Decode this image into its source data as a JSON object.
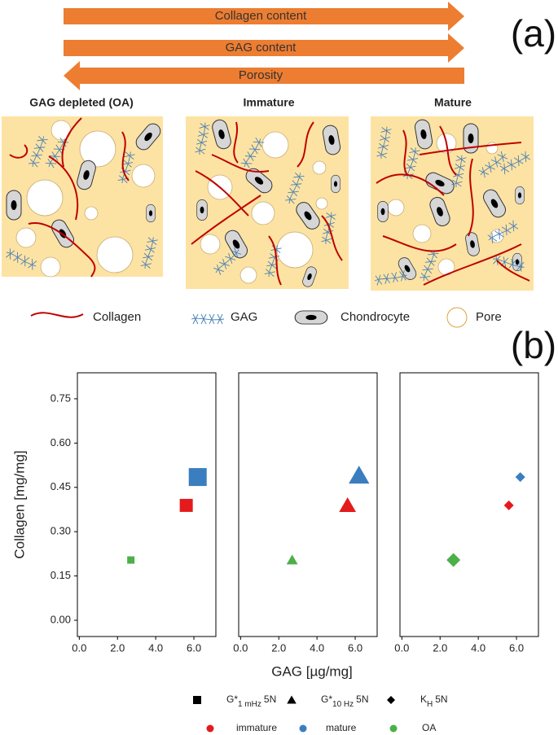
{
  "figure_a": {
    "label": "(a)",
    "arrows": [
      {
        "text": "Collagen content",
        "direction": "right"
      },
      {
        "text": "GAG content",
        "direction": "right"
      },
      {
        "text": "Porosity",
        "direction": "left"
      }
    ],
    "panels": [
      "GAG depleted (OA)",
      "Immature",
      "Mature"
    ],
    "legend": [
      "Collagen",
      "GAG",
      "Chondrocyte",
      "Pore"
    ]
  },
  "figure_b": {
    "label": "(b)",
    "x_label": "GAG [µg/mg]",
    "y_label": "Collagen [mg/mg]",
    "groups": [
      {
        "name": "immature",
        "color": "#e41a1c"
      },
      {
        "name": "mature",
        "color": "#3a7ebf"
      },
      {
        "name": "OA",
        "color": "#4daf4a"
      }
    ],
    "markers": [
      {
        "main": "G*",
        "sub": "1 mHz",
        "tail": "5N",
        "shape": "square"
      },
      {
        "main": "G*",
        "sub": "10 Hz",
        "tail": "5N",
        "shape": "triangle"
      },
      {
        "main": "K",
        "sub": "H",
        "tail": "5N",
        "shape": "diamond"
      }
    ]
  },
  "chart_data": [
    {
      "type": "scatter",
      "marker": "square",
      "x": [
        5.6,
        6.2,
        2.7
      ],
      "values": [
        0.389,
        0.485,
        0.204
      ],
      "sizes": [
        16,
        22,
        9
      ],
      "xlim": [
        -0.1,
        7.15
      ],
      "ylim": [
        -0.055,
        0.838
      ],
      "xticks": [
        {
          "value": 0,
          "label": "0.0"
        },
        {
          "value": 2,
          "label": "2.0"
        },
        {
          "value": 4,
          "label": "4.0"
        },
        {
          "value": 6,
          "label": "6.0"
        }
      ],
      "yticks": [
        {
          "value": 0,
          "label": "0.00"
        },
        0.15,
        {
          "value": 0.3,
          "label": "0.30"
        },
        0.45,
        {
          "value": 0.6,
          "label": "0.60"
        },
        0.75
      ]
    },
    {
      "type": "scatter",
      "marker": "triangle",
      "x": [
        5.6,
        6.2,
        2.7
      ],
      "values": [
        0.389,
        0.49,
        0.204
      ],
      "sizes": [
        18,
        22,
        12
      ],
      "xlim": [
        -0.1,
        7.15
      ],
      "ylim": [
        -0.055,
        0.838
      ],
      "xticks": [
        {
          "value": 0,
          "label": "0.0"
        },
        {
          "value": 2,
          "label": "2.0"
        },
        {
          "value": 4,
          "label": "4.0"
        },
        {
          "value": 6,
          "label": "6.0"
        }
      ]
    },
    {
      "type": "scatter",
      "marker": "diamond",
      "x": [
        5.6,
        6.2,
        2.7
      ],
      "values": [
        0.389,
        0.485,
        0.204
      ],
      "sizes": [
        12,
        12,
        17
      ],
      "xlim": [
        -0.1,
        7.15
      ],
      "ylim": [
        -0.055,
        0.838
      ],
      "xticks": [
        {
          "value": 0,
          "label": "0.0"
        },
        {
          "value": 2,
          "label": "2.0"
        },
        {
          "value": 4,
          "label": "4.0"
        },
        {
          "value": 6,
          "label": "6.0"
        }
      ]
    }
  ]
}
